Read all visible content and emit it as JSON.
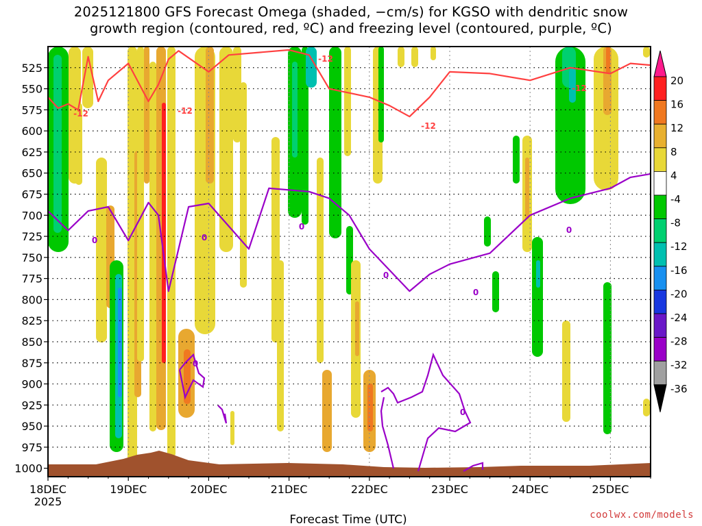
{
  "title": {
    "line1": "2025121800 GFS Forecast Omega (shaded, −cm/s) for KGSO with dendritic snow",
    "line2": "growth region (contoured, red, ºC) and freezing level (contoured, purple, ºC)"
  },
  "credit": "coolwx.com/models",
  "chart_data": {
    "type": "heatmap",
    "title": "2025121800 GFS Forecast Omega (shaded, −cm/s) for KGSO with dendritic snow growth region (contoured, red, ºC) and freezing level (contoured, purple, ºC)",
    "xlabel": "Forecast Time (UTC)",
    "ylabel": "",
    "x_ticks": [
      "18DEC\n2025",
      "19DEC",
      "20DEC",
      "21DEC",
      "22DEC",
      "23DEC",
      "24DEC",
      "25DEC"
    ],
    "x_range": [
      "2025-12-18 00Z",
      "2025-12-25 12Z"
    ],
    "y_ticks": [
      525,
      550,
      575,
      600,
      625,
      650,
      675,
      700,
      725,
      750,
      775,
      800,
      825,
      850,
      875,
      900,
      925,
      950,
      975,
      1000
    ],
    "y_range_hPa": [
      500,
      1010
    ],
    "y_reversed": true,
    "grid": true,
    "colorbar": {
      "labels": [
        20,
        16,
        12,
        8,
        4,
        -4,
        -8,
        -12,
        -16,
        -20,
        -24,
        -28,
        -32,
        -36
      ],
      "colors": [
        "#ff2020",
        "#f07820",
        "#e8b030",
        "#e8d838",
        "#ffffff",
        "#00c800",
        "#00d070",
        "#00c0b0",
        "#1890f0",
        "#1838e0",
        "#6a18c8",
        "#9a00c8",
        "#a0a0a0"
      ],
      "top_cap": "#ff1a8c",
      "bottom_cap": "#000000"
    },
    "contours": {
      "dendritic_red": {
        "level": -12,
        "labels": [
          "-12",
          "-12",
          "-12",
          "-12",
          "-12"
        ]
      },
      "freezing_purple": {
        "level": 0,
        "labels": [
          "0",
          "0",
          "0",
          "0",
          "0",
          "0",
          "0",
          "0"
        ]
      }
    },
    "series": [
      {
        "name": "-12 contour (upper)",
        "points": [
          [
            "2025-12-18 00Z",
            560
          ],
          [
            "2025-12-18 03Z",
            573
          ],
          [
            "2025-12-18 06Z",
            568
          ],
          [
            "2025-12-18 09Z",
            575
          ],
          [
            "2025-12-18 12Z",
            512
          ],
          [
            "2025-12-18 15Z",
            565
          ],
          [
            "2025-12-18 18Z",
            540
          ],
          [
            "2025-12-19 00Z",
            520
          ],
          [
            "2025-12-19 06Z",
            565
          ],
          [
            "2025-12-19 09Z",
            545
          ],
          [
            "2025-12-19 12Z",
            515
          ],
          [
            "2025-12-19 15Z",
            505
          ],
          [
            "2025-12-20 00Z",
            530
          ],
          [
            "2025-12-20 06Z",
            510
          ],
          [
            "2025-12-21 00Z",
            504
          ],
          [
            "2025-12-21 06Z",
            510
          ],
          [
            "2025-12-21 12Z",
            550
          ],
          [
            "2025-12-22 00Z",
            560
          ],
          [
            "2025-12-22 06Z",
            570
          ],
          [
            "2025-12-22 12Z",
            583
          ],
          [
            "2025-12-22 18Z",
            560
          ],
          [
            "2025-12-23 00Z",
            530
          ],
          [
            "2025-12-23 12Z",
            532
          ],
          [
            "2025-12-24 00Z",
            540
          ],
          [
            "2025-12-24 12Z",
            525
          ],
          [
            "2025-12-25 00Z",
            532
          ],
          [
            "2025-12-25 06Z",
            520
          ],
          [
            "2025-12-25 12Z",
            522
          ]
        ]
      },
      {
        "name": "0 contour (freezing level)",
        "points": [
          [
            "2025-12-18 00Z",
            695
          ],
          [
            "2025-12-18 06Z",
            718
          ],
          [
            "2025-12-18 12Z",
            695
          ],
          [
            "2025-12-18 18Z",
            690
          ],
          [
            "2025-12-19 00Z",
            730
          ],
          [
            "2025-12-19 06Z",
            685
          ],
          [
            "2025-12-19 09Z",
            700
          ],
          [
            "2025-12-19 12Z",
            790
          ],
          [
            "2025-12-19 18Z",
            690
          ],
          [
            "2025-12-20 00Z",
            686
          ],
          [
            "2025-12-20 12Z",
            740
          ],
          [
            "2025-12-20 18Z",
            668
          ],
          [
            "2025-12-21 06Z",
            672
          ],
          [
            "2025-12-21 12Z",
            680
          ],
          [
            "2025-12-21 18Z",
            700
          ],
          [
            "2025-12-22 00Z",
            740
          ],
          [
            "2025-12-22 12Z",
            790
          ],
          [
            "2025-12-22 18Z",
            770
          ],
          [
            "2025-12-23 00Z",
            758
          ],
          [
            "2025-12-23 12Z",
            745
          ],
          [
            "2025-12-24 00Z",
            700
          ],
          [
            "2025-12-24 12Z",
            680
          ],
          [
            "2025-12-25 00Z",
            668
          ],
          [
            "2025-12-25 06Z",
            655
          ],
          [
            "2025-12-25 12Z",
            651
          ]
        ]
      }
    ]
  }
}
